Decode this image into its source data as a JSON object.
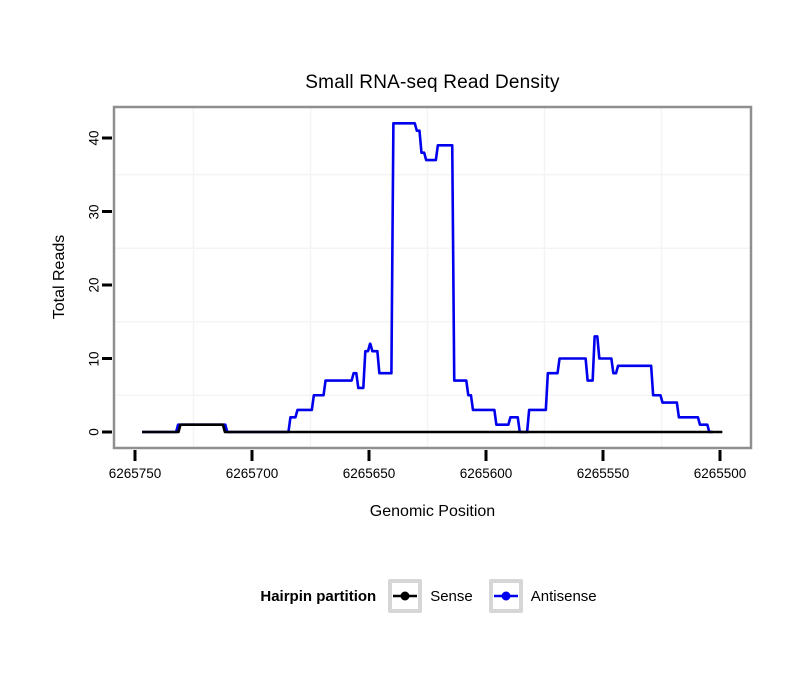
{
  "chart_data": {
    "type": "line",
    "title": "Small RNA-seq Read Density",
    "xlabel": "Genomic Position",
    "ylabel": "Total Reads",
    "x_reversed": true,
    "x_ticks": [
      6265750,
      6265700,
      6265650,
      6265600,
      6265550,
      6265500
    ],
    "x_tick_labels": [
      "6265750",
      "6265700",
      "6265650",
      "6265600",
      "6265550",
      "6265500"
    ],
    "y_ticks": [
      0,
      10,
      20,
      30,
      40
    ],
    "y_tick_labels": [
      "0",
      "10",
      "20",
      "30",
      "40"
    ],
    "ylim": [
      -2,
      44
    ],
    "grid": {
      "x_minor": [
        6265725,
        6265675,
        6265625,
        6265575,
        6265525
      ],
      "y_minor": [
        5,
        15,
        25,
        35
      ]
    },
    "series": [
      {
        "name": "Sense",
        "color": "#000000",
        "steps": [
          [
            6265747,
            0
          ],
          [
            6265731,
            1
          ],
          [
            6265712,
            0
          ],
          [
            6265499,
            0
          ]
        ]
      },
      {
        "name": "Antisense",
        "color": "#0000EE",
        "steps": [
          [
            6265747,
            0
          ],
          [
            6265732,
            1
          ],
          [
            6265711,
            0
          ],
          [
            6265684,
            2
          ],
          [
            6265681,
            3
          ],
          [
            6265674,
            5
          ],
          [
            6265669,
            7
          ],
          [
            6265657,
            8
          ],
          [
            6265655,
            6
          ],
          [
            6265652,
            11
          ],
          [
            6265650,
            12
          ],
          [
            6265649,
            11
          ],
          [
            6265646,
            8
          ],
          [
            6265640,
            42
          ],
          [
            6265630,
            41
          ],
          [
            6265628,
            38
          ],
          [
            6265626,
            37
          ],
          [
            6265621,
            39
          ],
          [
            6265614,
            7
          ],
          [
            6265608,
            5
          ],
          [
            6265606,
            3
          ],
          [
            6265596,
            1
          ],
          [
            6265590,
            2
          ],
          [
            6265586,
            0
          ],
          [
            6265582,
            3
          ],
          [
            6265574,
            8
          ],
          [
            6265569,
            10
          ],
          [
            6265557,
            7
          ],
          [
            6265554,
            13
          ],
          [
            6265552,
            10
          ],
          [
            6265546,
            8
          ],
          [
            6265544,
            9
          ],
          [
            6265529,
            5
          ],
          [
            6265525,
            4
          ],
          [
            6265518,
            2
          ],
          [
            6265509,
            1
          ],
          [
            6265505,
            0
          ],
          [
            6265503,
            0
          ]
        ]
      }
    ]
  },
  "legend": {
    "title": "Hairpin partition",
    "entries": [
      {
        "label": "Sense",
        "color": "#000000"
      },
      {
        "label": "Antisense",
        "color": "#0000EE"
      }
    ]
  },
  "colors": {
    "panel_border": "#8f8f8f",
    "grid_minor": "#f4f4f4",
    "tick": "#000000",
    "legend_key_border": "#d6d6d6",
    "background": "#ffffff"
  }
}
